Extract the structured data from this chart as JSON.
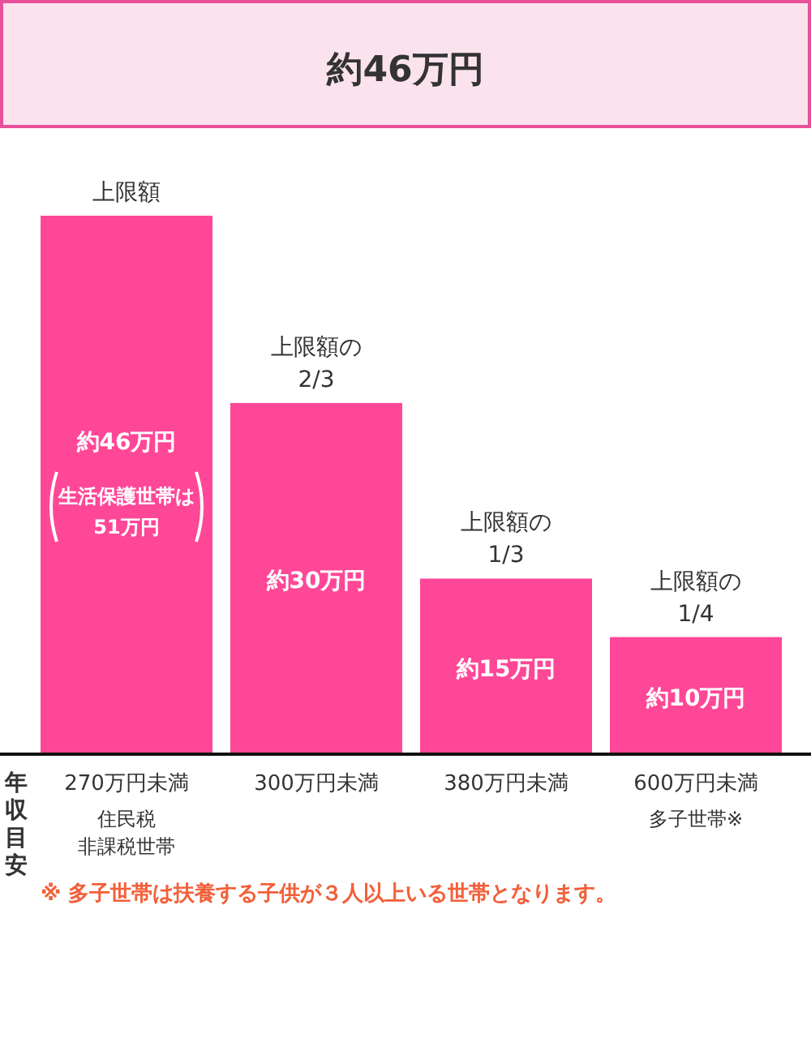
{
  "chart_data": {
    "type": "bar",
    "title": "約46万円",
    "categories": [
      "270万円未満",
      "300万円未満",
      "380万円未満",
      "600万円未満"
    ],
    "values": [
      46,
      30,
      15,
      10
    ],
    "color": "#ff4797",
    "value_labels": [
      "約46万円",
      "約30万円",
      "約15万円",
      "約10万円"
    ],
    "xlabel": "年収目安",
    "annotations": [
      {
        "text": "上限額",
        "x": "270万円未満",
        "y": 46
      },
      {
        "text": "上限額の\n2/3",
        "x": "300万円未満",
        "y": 30
      },
      {
        "text": "上限額の\n1/3",
        "x": "380万円未満",
        "y": 15
      },
      {
        "text": "上限額の\n1/4",
        "x": "600万円未満",
        "y": 10
      },
      "生活保護世帯は",
      "51万円",
      "住民税",
      "非課税世帯",
      "多子世帯※",
      "※ 多子世帯は扶養する子供が３人以上いる世帯となります。"
    ]
  }
}
